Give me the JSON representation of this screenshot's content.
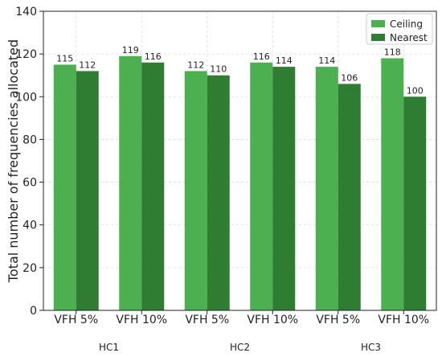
{
  "chart_data": {
    "type": "bar",
    "categories": [
      "VFH 5%",
      "VFH 10%",
      "VFH 5%",
      "VFH 10%",
      "VFH 5%",
      "VFH 10%"
    ],
    "groups": [
      "HC1",
      "HC2",
      "HC3"
    ],
    "series": [
      {
        "name": "Ceiling",
        "values": [
          115,
          119,
          112,
          116,
          114,
          118
        ],
        "color": "#4caf50"
      },
      {
        "name": "Nearest",
        "values": [
          112,
          116,
          110,
          114,
          106,
          100
        ],
        "color": "#2e7d32"
      }
    ],
    "xlabel": "",
    "ylabel": "Total number of frequencies allocated",
    "ylim": [
      0,
      140
    ],
    "yticks": [
      0,
      20,
      40,
      60,
      80,
      100,
      120,
      140
    ],
    "grid": true,
    "legend": "top-right"
  }
}
